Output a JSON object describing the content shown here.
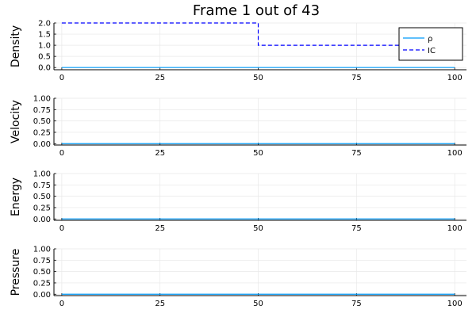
{
  "title": "Frame 1 out of 43",
  "chart_data": [
    {
      "type": "line",
      "ylabel": "Density",
      "xlim": [
        -2,
        103
      ],
      "ylim": [
        -0.1,
        2.0
      ],
      "xticks": [
        0,
        25,
        50,
        75,
        100
      ],
      "yticks": [
        0.0,
        0.5,
        1.0,
        1.5,
        2.0
      ],
      "grid": true,
      "legend": "top-right",
      "series": [
        {
          "name": "ρ",
          "color": "#009af9",
          "style": "solid",
          "x": [
            0,
            100
          ],
          "y": [
            0,
            0
          ]
        },
        {
          "name": "IC",
          "color": "#0000ff",
          "style": "dashed",
          "x": [
            0,
            50,
            50,
            100
          ],
          "y": [
            2.0,
            2.0,
            1.0,
            1.0
          ]
        }
      ]
    },
    {
      "type": "line",
      "ylabel": "Velocity",
      "xlim": [
        -2,
        103
      ],
      "ylim": [
        -0.03,
        1.0
      ],
      "xticks": [
        0,
        25,
        50,
        75,
        100
      ],
      "yticks": [
        0.0,
        0.25,
        0.5,
        0.75,
        1.0
      ],
      "grid": true,
      "series": [
        {
          "color": "#009af9",
          "style": "solid",
          "x": [
            0,
            100
          ],
          "y": [
            0,
            0
          ]
        }
      ]
    },
    {
      "type": "line",
      "ylabel": "Energy",
      "xlim": [
        -2,
        103
      ],
      "ylim": [
        -0.03,
        1.0
      ],
      "xticks": [
        0,
        25,
        50,
        75,
        100
      ],
      "yticks": [
        0.0,
        0.25,
        0.5,
        0.75,
        1.0
      ],
      "grid": true,
      "series": [
        {
          "color": "#009af9",
          "style": "solid",
          "x": [
            0,
            100
          ],
          "y": [
            0,
            0
          ]
        }
      ]
    },
    {
      "type": "line",
      "ylabel": "Pressure",
      "xlim": [
        -2,
        103
      ],
      "ylim": [
        -0.03,
        1.0
      ],
      "xticks": [
        0,
        25,
        50,
        75,
        100
      ],
      "yticks": [
        0.0,
        0.25,
        0.5,
        0.75,
        1.0
      ],
      "grid": true,
      "series": [
        {
          "color": "#009af9",
          "style": "solid",
          "x": [
            0,
            100
          ],
          "y": [
            0,
            0
          ]
        }
      ]
    }
  ]
}
